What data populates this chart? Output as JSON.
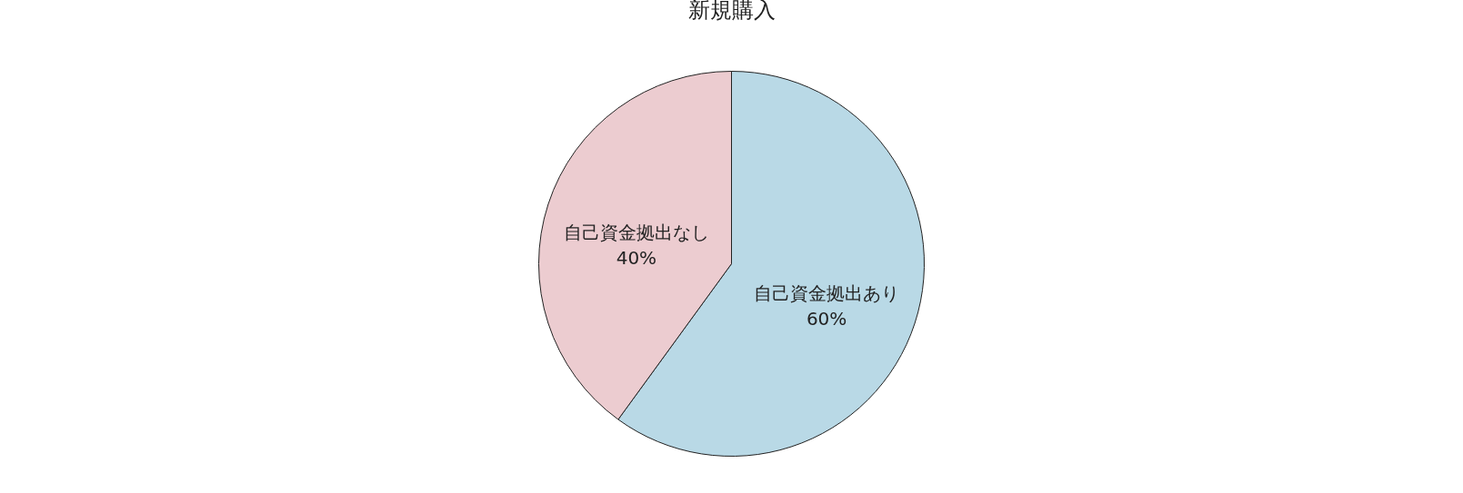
{
  "chart_data": {
    "type": "pie",
    "title": "新規購入",
    "categories": [
      "自己資金拠出あり",
      "自己資金拠出なし"
    ],
    "values": [
      60,
      40
    ],
    "value_labels": [
      "60%",
      "40%"
    ],
    "colors": [
      "#b9d9e6",
      "#ecccd0"
    ]
  }
}
